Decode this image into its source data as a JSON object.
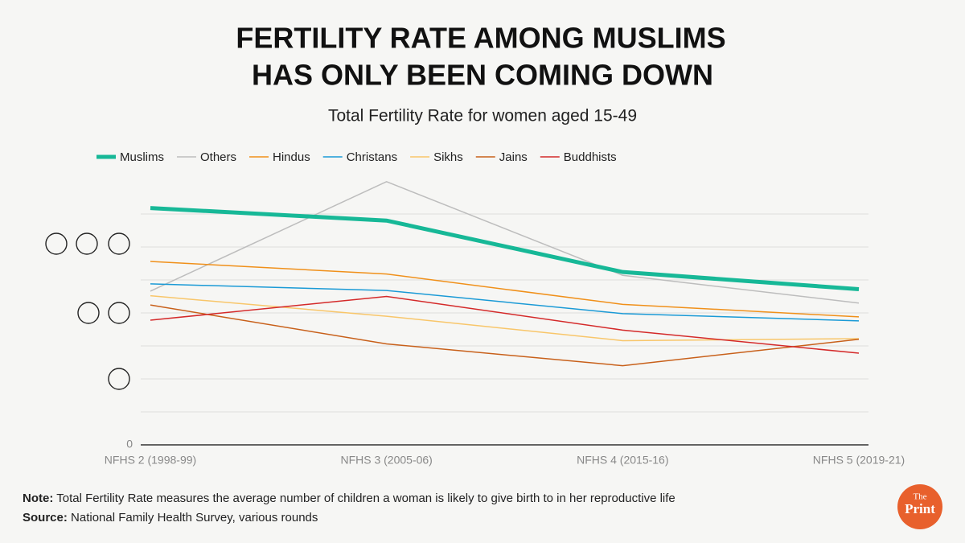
{
  "chart_data": {
    "type": "line",
    "title_lines": [
      "FERTILITY RATE AMONG MUSLIMS",
      "HAS ONLY BEEN COMING DOWN"
    ],
    "subtitle": "Total Fertility Rate for women aged 15-49",
    "categories": [
      "NFHS 2 (1998-99)",
      "NFHS 3 (2005-06)",
      "NFHS 4 (2015-16)",
      "NFHS 5 (2019-21)"
    ],
    "series": [
      {
        "name": "Muslims",
        "color": "#17b897",
        "width": 5,
        "values": [
          3.59,
          3.4,
          2.62,
          2.36
        ]
      },
      {
        "name": "Others",
        "color": "#bdbdbd",
        "width": 1.5,
        "values": [
          2.33,
          3.99,
          2.57,
          2.15
        ]
      },
      {
        "name": "Hindus",
        "color": "#f0901a",
        "width": 1.5,
        "values": [
          2.78,
          2.59,
          2.13,
          1.94
        ]
      },
      {
        "name": "Christans",
        "color": "#1a9ad6",
        "width": 1.5,
        "values": [
          2.44,
          2.34,
          1.99,
          1.88
        ]
      },
      {
        "name": "Sikhs",
        "color": "#f8c66a",
        "width": 1.5,
        "values": [
          2.26,
          1.95,
          1.58,
          1.61
        ]
      },
      {
        "name": "Jains",
        "color": "#c8601a",
        "width": 1.5,
        "values": [
          2.12,
          1.53,
          1.2,
          1.6
        ]
      },
      {
        "name": "Buddhists",
        "color": "#d42a2a",
        "width": 1.5,
        "values": [
          1.89,
          2.25,
          1.74,
          1.39
        ]
      }
    ],
    "ylim": [
      0,
      4
    ],
    "yticks": [
      0
    ],
    "gridlines": [
      0.5,
      1,
      1.5,
      2,
      2.5,
      3,
      3.5
    ],
    "legend": "top",
    "note_label": "Note:",
    "note": "Total Fertility Rate measures the average number of children a woman is likely to give birth to in her reproductive life",
    "source_label": "Source:",
    "source": "National Family Health Survey, various rounds",
    "logo": [
      "The",
      "Print"
    ]
  }
}
